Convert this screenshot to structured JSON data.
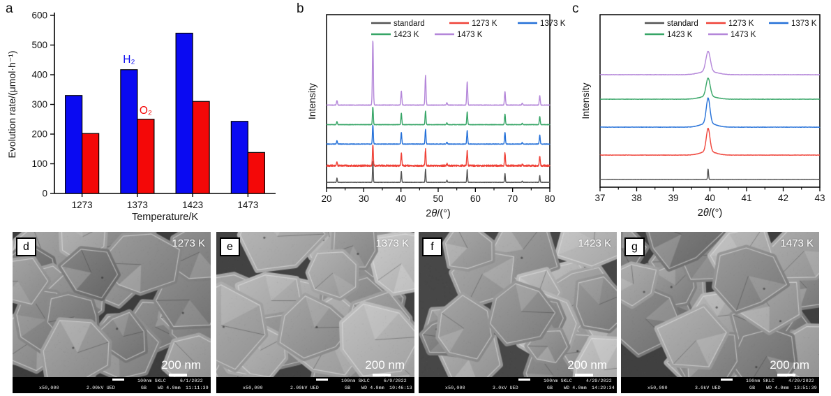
{
  "figure": {
    "panel_labels": {
      "a": "a",
      "b": "b",
      "c": "c"
    }
  },
  "chart_data": [
    {
      "panel": "a",
      "type": "bar",
      "title": "",
      "xlabel": "Temperature/K",
      "ylabel": "Evolution rate/(μmol·h⁻¹)",
      "categories": [
        "1273",
        "1373",
        "1423",
        "1473"
      ],
      "series": [
        {
          "name": "H₂",
          "color": "#0a0af2",
          "values": [
            330,
            417,
            540,
            243
          ]
        },
        {
          "name": "O₂",
          "color": "#f40808",
          "values": [
            202,
            250,
            310,
            138
          ]
        }
      ],
      "ylim": [
        0,
        600
      ],
      "yticks": [
        0,
        100,
        200,
        300,
        400,
        500,
        600
      ],
      "grid": false,
      "annotations": [
        {
          "text": "H₂",
          "color": "#0a0af2",
          "category_index": 1,
          "value": 440
        },
        {
          "text": "O₂",
          "color": "#f40808",
          "category_index": 1,
          "value": 268
        }
      ]
    },
    {
      "panel": "b",
      "type": "line",
      "subtype": "xrd",
      "xlabel": "2θ/(°)",
      "ylabel": "Intensity",
      "xlim": [
        20,
        80
      ],
      "xticks": [
        20,
        30,
        40,
        50,
        60,
        70,
        80
      ],
      "grid": false,
      "legend_position": "top-inside",
      "legend_rows": [
        [
          "standard",
          "1273 K",
          "1373 K"
        ],
        [
          "1423 K",
          "1473 K"
        ]
      ],
      "peak_positions": [
        22.8,
        32.45,
        40.1,
        46.6,
        52.35,
        57.8,
        67.95,
        72.6,
        77.3
      ],
      "series": [
        {
          "name": "standard",
          "color": "#545454",
          "baseline_frac": 0.032,
          "peak_height": 30,
          "sigma": 0.1,
          "noise": 0.3,
          "relative_intensities": [
            0.2,
            1,
            0.52,
            0.62,
            0.1,
            0.6,
            0.42,
            0.06,
            0.32
          ]
        },
        {
          "name": "1273 K",
          "color": "#ef4238",
          "baseline_frac": 0.128,
          "peak_height": 30,
          "sigma": 0.12,
          "noise": 1.2,
          "relative_intensities": [
            0.18,
            1,
            0.62,
            0.78,
            0.1,
            0.72,
            0.62,
            0.08,
            0.48
          ]
        },
        {
          "name": "1373 K",
          "color": "#2470d8",
          "baseline_frac": 0.253,
          "peak_height": 27,
          "sigma": 0.12,
          "noise": 0.35,
          "relative_intensities": [
            0.18,
            1,
            0.62,
            0.78,
            0.1,
            0.72,
            0.62,
            0.08,
            0.48
          ]
        },
        {
          "name": "1423 K",
          "color": "#36a566",
          "baseline_frac": 0.365,
          "peak_height": 25,
          "sigma": 0.12,
          "noise": 0.35,
          "relative_intensities": [
            0.18,
            1,
            0.66,
            0.78,
            0.1,
            0.72,
            0.62,
            0.08,
            0.48
          ]
        },
        {
          "name": "1473 K",
          "color": "#b486d9",
          "baseline_frac": 0.478,
          "peak_height": 92,
          "sigma": 0.13,
          "noise": 0.4,
          "relative_intensities": [
            0.07,
            1,
            0.22,
            0.46,
            0.035,
            0.36,
            0.21,
            0.03,
            0.145
          ]
        }
      ]
    },
    {
      "panel": "c",
      "type": "line",
      "subtype": "xrd-zoom",
      "xlabel": "2θ/(°)",
      "ylabel": "Intensity",
      "xlim": [
        37,
        43
      ],
      "xticks": [
        37,
        38,
        39,
        40,
        41,
        42,
        43
      ],
      "grid": false,
      "legend_position": "top-inside",
      "legend_rows": [
        [
          "standard",
          "1273 K",
          "1373 K"
        ],
        [
          "1423 K",
          "1473 K"
        ]
      ],
      "peak_positions": [
        39.95
      ],
      "series": [
        {
          "name": "standard",
          "color": "#545454",
          "baseline_frac": 0.045,
          "peak_height": 15,
          "sigma": 0.012,
          "noise": 0.2,
          "relative_intensities": [
            1
          ]
        },
        {
          "name": "1273 K",
          "color": "#ef4238",
          "baseline_frac": 0.186,
          "peak_height": 33,
          "sigma": 0.05,
          "noise": 0.25,
          "relative_intensities": [
            1
          ]
        },
        {
          "name": "1373 K",
          "color": "#2470d8",
          "baseline_frac": 0.348,
          "peak_height": 36,
          "sigma": 0.05,
          "noise": 0.25,
          "relative_intensities": [
            1
          ]
        },
        {
          "name": "1423 K",
          "color": "#36a566",
          "baseline_frac": 0.51,
          "peak_height": 26,
          "sigma": 0.055,
          "noise": 0.25,
          "relative_intensities": [
            1
          ]
        },
        {
          "name": "1473 K",
          "color": "#b486d9",
          "baseline_frac": 0.652,
          "peak_height": 29,
          "sigma": 0.06,
          "noise": 0.25,
          "relative_intensities": [
            1
          ]
        }
      ]
    }
  ],
  "sem_panels": [
    {
      "label": "d",
      "temperature": "1273 K",
      "scale_bar_label": "200 nm",
      "footer": {
        "magnification": "x50,000",
        "voltage": "2.00kV UED",
        "gb": "GB",
        "scale": "100nm SKLC",
        "date": "6/1/2022",
        "wd": "WD 4.0mm",
        "time": "11:11:39"
      }
    },
    {
      "label": "e",
      "temperature": "1373 K",
      "scale_bar_label": "200 nm",
      "footer": {
        "magnification": "x50,000",
        "voltage": "2.00kV UED",
        "gb": "GB",
        "scale": "100nm SKLC",
        "date": "6/9/2022",
        "wd": "WD 4.0mm",
        "time": "10:46:13"
      }
    },
    {
      "label": "f",
      "temperature": "1423 K",
      "scale_bar_label": "200 nm",
      "footer": {
        "magnification": "x50,000",
        "voltage": "3.0kV UED",
        "gb": "GB",
        "scale": "100nm SKLC",
        "date": "4/29/2022",
        "wd": "WD 4.0mm",
        "time": "14:29:34"
      }
    },
    {
      "label": "g",
      "temperature": "1473 K",
      "scale_bar_label": "200 nm",
      "footer": {
        "magnification": "x50,000",
        "voltage": "3.0kV UED",
        "gb": "GB",
        "scale": "100nm SKLC",
        "date": "4/20/2022",
        "wd": "WD 4.0mm",
        "time": "13:51:39"
      }
    }
  ]
}
